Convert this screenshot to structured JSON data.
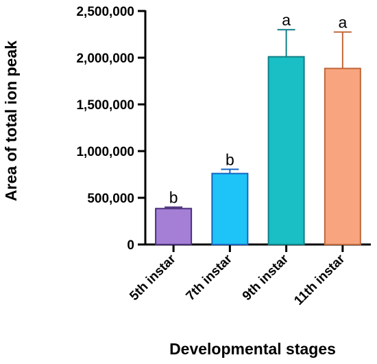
{
  "chart_data": {
    "type": "bar",
    "xlabel": "Developmental stages",
    "ylabel": "Area of total ion peak",
    "ylim": [
      0,
      2500000
    ],
    "yticks": [
      0,
      500000,
      1000000,
      1500000,
      2000000,
      2500000
    ],
    "ytick_labels": [
      "0",
      "500,000",
      "1,000,000",
      "1,500,000",
      "2,000,000",
      "2,500,000"
    ],
    "categories": [
      "5th instar",
      "7th instar",
      "9th instar",
      "11th instar"
    ],
    "values": [
      385000,
      760000,
      2010000,
      1885000
    ],
    "error": [
      15000,
      45000,
      290000,
      390000
    ],
    "significance": [
      "b",
      "b",
      "a",
      "a"
    ],
    "colors": [
      "#a57fd6",
      "#1ec3f7",
      "#19bfc4",
      "#f8a47e"
    ],
    "edge_colors": [
      "#4a2f7a",
      "#1565c0",
      "#0e7f86",
      "#c0683a"
    ],
    "grid": false,
    "legend": "none"
  }
}
